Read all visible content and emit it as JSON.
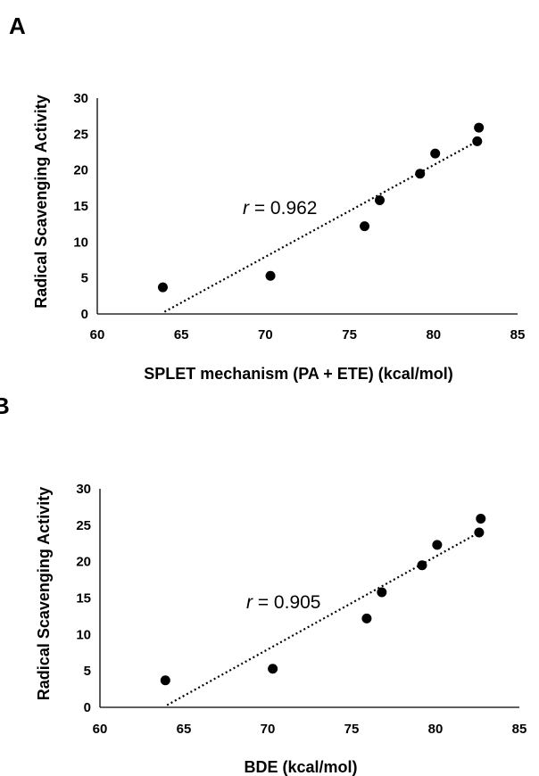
{
  "chart_data": [
    {
      "type": "scatter",
      "panel_label": "A",
      "xlabel": "SPLET mechanism (PA + ETE) (kcal/mol)",
      "ylabel": "Radical Scavenging Activity",
      "xlim": [
        60,
        85
      ],
      "ylim": [
        0,
        30
      ],
      "xticks": [
        "60",
        "65",
        "70",
        "75",
        "80",
        "85"
      ],
      "yticks": [
        "0",
        "5",
        "10",
        "15",
        "20",
        "25",
        "30"
      ],
      "annotation": {
        "prefix": "r",
        "text": " = 0.962"
      },
      "trendline": {
        "x": [
          64.0,
          82.6
        ],
        "y": [
          0.3,
          24.0
        ],
        "style": "dotted"
      },
      "series": [
        {
          "x": [
            63.9,
            70.3,
            75.9,
            76.8,
            79.2,
            80.1,
            82.6,
            82.7
          ],
          "y": [
            3.7,
            5.3,
            12.2,
            15.8,
            19.5,
            22.3,
            24.0,
            25.9
          ]
        }
      ],
      "grid": false
    },
    {
      "type": "scatter",
      "panel_label": "B",
      "xlabel": "BDE (kcal/mol)",
      "ylabel": "Radical Scavenging Activity",
      "xlim": [
        60,
        85
      ],
      "ylim": [
        0,
        30
      ],
      "xticks": [
        "60",
        "65",
        "70",
        "75",
        "80",
        "85"
      ],
      "yticks": [
        "0",
        "5",
        "10",
        "15",
        "20",
        "25",
        "30"
      ],
      "annotation": {
        "prefix": "r",
        "text": " = 0.905"
      },
      "trendline": {
        "x": [
          64.0,
          82.6
        ],
        "y": [
          0.3,
          24.0
        ],
        "style": "dotted"
      },
      "series": [
        {
          "x": [
            63.9,
            70.3,
            75.9,
            76.8,
            79.2,
            80.1,
            82.6,
            82.7
          ],
          "y": [
            3.7,
            5.3,
            12.2,
            15.8,
            19.5,
            22.3,
            24.0,
            25.9
          ]
        }
      ],
      "grid": false
    }
  ]
}
